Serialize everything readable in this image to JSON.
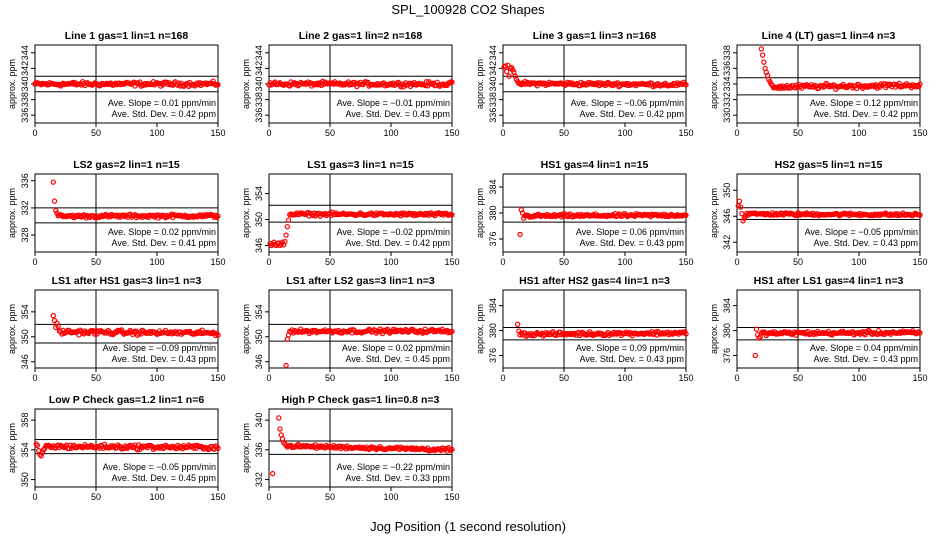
{
  "title": "SPL_100928  CO2 Shapes",
  "xlabel": "Jog Position (1 second resolution)",
  "chart_data": {
    "type": "scatter",
    "title": "SPL_100928  CO2 Shapes",
    "xlabel": "Jog Position (1 second resolution)",
    "marker_color": "#ff0000",
    "panels": [
      {
        "title": "Line 1 gas=1 lin=1 n=168",
        "ylabel": "approx. ppm",
        "xlim": [
          0,
          150
        ],
        "xticks": [
          0,
          50,
          100,
          150
        ],
        "ylim": [
          335,
          345
        ],
        "yticks": [
          336,
          338,
          340,
          342,
          344
        ],
        "hlines": [
          341,
          339
        ],
        "base": 340,
        "noise": 0.22,
        "slope": 0.01,
        "start": 0,
        "end": 150,
        "lead": [],
        "slope_text": "Ave. Slope =  0.01  ppm/min",
        "std_text": "Ave. Std. Dev. =  0.42  ppm"
      },
      {
        "title": "Line 2 gas=1 lin=2 n=168",
        "ylabel": "approx. ppm",
        "xlim": [
          0,
          150
        ],
        "xticks": [
          0,
          50,
          100,
          150
        ],
        "ylim": [
          335,
          345
        ],
        "yticks": [
          336,
          338,
          340,
          342,
          344
        ],
        "hlines": [
          341,
          339
        ],
        "base": 340,
        "noise": 0.22,
        "slope": -0.01,
        "start": 0,
        "end": 150,
        "lead": [],
        "slope_text": "Ave. Slope =  −0.01  ppm/min",
        "std_text": "Ave. Std. Dev. =  0.43  ppm"
      },
      {
        "title": "Line 3 gas=1 lin=3 n=168",
        "ylabel": "approx. ppm",
        "xlim": [
          0,
          150
        ],
        "xticks": [
          0,
          50,
          100,
          150
        ],
        "ylim": [
          335,
          345
        ],
        "yticks": [
          336,
          338,
          340,
          342,
          344
        ],
        "hlines": [
          341,
          339
        ],
        "base": 340,
        "noise": 0.2,
        "slope": -0.06,
        "start": 14,
        "end": 150,
        "lead": [
          [
            1,
            342.2
          ],
          [
            2,
            342.3
          ],
          [
            3,
            341.6
          ],
          [
            4,
            342.4
          ],
          [
            5,
            341.0
          ],
          [
            6,
            342.0
          ],
          [
            7,
            342.1
          ],
          [
            8,
            341.8
          ],
          [
            9,
            341.5
          ],
          [
            10,
            341.0
          ],
          [
            11,
            340.6
          ],
          [
            12,
            340.3
          ],
          [
            13,
            340.1
          ]
        ],
        "slope_text": "Ave. Slope =  −0.06  ppm/min",
        "std_text": "Ave. Std. Dev. =  0.42  ppm"
      },
      {
        "title": "Line 4 (LT) gas=1 lin=4 n=3",
        "ylabel": "approx. ppm",
        "xlim": [
          0,
          150
        ],
        "xticks": [
          0,
          50,
          100,
          150
        ],
        "ylim": [
          329,
          339
        ],
        "yticks": [
          330,
          332,
          334,
          336,
          338
        ],
        "hlines": [
          334.8,
          332.6
        ],
        "base": 333.7,
        "noise": 0.25,
        "slope": 0.12,
        "start": 30,
        "end": 150,
        "lead": [
          [
            20,
            338.5
          ],
          [
            21,
            337.7
          ],
          [
            22,
            336.8
          ],
          [
            23,
            336.0
          ],
          [
            24,
            335.5
          ],
          [
            25,
            335.1
          ],
          [
            26,
            334.6
          ],
          [
            27,
            334.3
          ],
          [
            28,
            334.0
          ],
          [
            29,
            333.8
          ]
        ],
        "slope_text": "Ave. Slope =  0.12  ppm/min",
        "std_text": "Ave. Std. Dev. =  0.42  ppm"
      },
      {
        "title": "LS2 gas=2 lin=1 n=15",
        "ylabel": "approx. ppm",
        "xlim": [
          0,
          150
        ],
        "xticks": [
          0,
          50,
          100,
          150
        ],
        "ylim": [
          325.5,
          337
        ],
        "yticks": [
          328,
          332,
          336
        ],
        "hlines": [
          332.0,
          329.8
        ],
        "base": 330.8,
        "noise": 0.2,
        "slope": 0.02,
        "start": 19,
        "end": 150,
        "lead": [
          [
            15,
            335.8
          ],
          [
            16,
            333.0
          ],
          [
            17,
            331.6
          ],
          [
            18,
            331.2
          ]
        ],
        "slope_text": "Ave. Slope =  0.02  ppm/min",
        "std_text": "Ave. Std. Dev. =  0.41  ppm"
      },
      {
        "title": "LS1 gas=3 lin=1 n=15",
        "ylabel": "approx. ppm",
        "xlim": [
          0,
          150
        ],
        "xticks": [
          0,
          50,
          100,
          150
        ],
        "ylim": [
          345,
          357
        ],
        "yticks": [
          346,
          350,
          354
        ],
        "hlines": [
          352.2,
          349.6
        ],
        "base": 350.8,
        "noise": 0.2,
        "slope": -0.02,
        "start": 17,
        "end": 150,
        "lead": [
          [
            1,
            346.3
          ],
          [
            2,
            346.0
          ],
          [
            3,
            346.2
          ],
          [
            4,
            346.5
          ],
          [
            5,
            346.1
          ],
          [
            6,
            346.0
          ],
          [
            7,
            346.3
          ],
          [
            8,
            346.4
          ],
          [
            9,
            346.0
          ],
          [
            10,
            346.2
          ],
          [
            11,
            346.5
          ],
          [
            12,
            346.1
          ],
          [
            13,
            346.6
          ],
          [
            14,
            347.6
          ],
          [
            15,
            348.9
          ],
          [
            16,
            349.9
          ]
        ],
        "slope_text": "Ave. Slope =  −0.02  ppm/min",
        "std_text": "Ave. Std. Dev. =  0.42  ppm"
      },
      {
        "title": "HS1 gas=4 lin=1 n=15",
        "ylabel": "approx. ppm",
        "xlim": [
          0,
          150
        ],
        "xticks": [
          0,
          50,
          100,
          150
        ],
        "ylim": [
          374,
          386
        ],
        "yticks": [
          376,
          380,
          384
        ],
        "hlines": [
          380.9,
          378.6
        ],
        "base": 379.6,
        "noise": 0.2,
        "slope": 0.06,
        "start": 18,
        "end": 150,
        "lead": [
          [
            14,
            376.7
          ],
          [
            15,
            380.5
          ],
          [
            16,
            380.0
          ],
          [
            17,
            379.2
          ]
        ],
        "slope_text": "Ave. Slope =  0.06  ppm/min",
        "std_text": "Ave. Std. Dev. =  0.43  ppm"
      },
      {
        "title": "HS2 gas=5 lin=1 n=15",
        "ylabel": "approx. ppm",
        "xlim": [
          0,
          150
        ],
        "xticks": [
          0,
          50,
          100,
          150
        ],
        "ylim": [
          340.5,
          352.5
        ],
        "yticks": [
          342,
          346,
          350
        ],
        "hlines": [
          347.3,
          345.5
        ],
        "base": 346.3,
        "noise": 0.18,
        "slope": -0.05,
        "start": 8,
        "end": 150,
        "lead": [
          [
            1,
            347.6
          ],
          [
            2,
            348.3
          ],
          [
            3,
            347.4
          ],
          [
            4,
            346.4
          ],
          [
            5,
            345.3
          ],
          [
            6,
            345.7
          ],
          [
            7,
            346.0
          ]
        ],
        "slope_text": "Ave. Slope =  −0.05  ppm/min",
        "std_text": "Ave. Std. Dev. =  0.43  ppm"
      },
      {
        "title": "LS1 after HS1 gas=3 lin=1 n=3",
        "ylabel": "approx. ppm",
        "xlim": [
          0,
          150
        ],
        "xticks": [
          0,
          50,
          100,
          150
        ],
        "ylim": [
          345,
          357.5
        ],
        "yticks": [
          346,
          350,
          354
        ],
        "hlines": [
          352.0,
          349.0
        ],
        "base": 350.7,
        "noise": 0.3,
        "slope": -0.09,
        "start": 20,
        "end": 150,
        "lead": [
          [
            15,
            353.4
          ],
          [
            16,
            352.6
          ],
          [
            17,
            351.5
          ],
          [
            18,
            352.2
          ],
          [
            19,
            351.7
          ]
        ],
        "slope_text": "Ave. Slope =  −0.09  ppm/min",
        "std_text": "Ave. Std. Dev. =  0.43  ppm"
      },
      {
        "title": "LS1 after LS2 gas=3 lin=1 n=3",
        "ylabel": "approx. ppm",
        "xlim": [
          0,
          150
        ],
        "xticks": [
          0,
          50,
          100,
          150
        ],
        "ylim": [
          345,
          357.5
        ],
        "yticks": [
          346,
          350,
          354
        ],
        "hlines": [
          352.0,
          349.3
        ],
        "base": 350.9,
        "noise": 0.25,
        "slope": 0.02,
        "start": 17,
        "end": 150,
        "lead": [
          [
            14,
            345.4
          ],
          [
            15,
            349.6
          ],
          [
            16,
            350.3
          ]
        ],
        "slope_text": "Ave. Slope =  0.02  ppm/min",
        "std_text": "Ave. Std. Dev. =  0.45  ppm"
      },
      {
        "title": "HS1 after HS2 gas=4 lin=1 n=3",
        "ylabel": "approx. ppm",
        "xlim": [
          0,
          150
        ],
        "xticks": [
          0,
          50,
          100,
          150
        ],
        "ylim": [
          374,
          386.5
        ],
        "yticks": [
          376,
          380,
          384
        ],
        "hlines": [
          380.5,
          378.5
        ],
        "base": 379.5,
        "noise": 0.25,
        "slope": 0.09,
        "start": 16,
        "end": 150,
        "lead": [
          [
            12,
            381.0
          ],
          [
            13,
            379.9
          ],
          [
            14,
            379.3
          ],
          [
            15,
            379.6
          ]
        ],
        "slope_text": "Ave. Slope =  0.09  ppm/min",
        "std_text": "Ave. Std. Dev. =  0.43  ppm"
      },
      {
        "title": "HS1 after LS1 gas=4 lin=1 n=3",
        "ylabel": "approx. ppm",
        "xlim": [
          0,
          150
        ],
        "xticks": [
          0,
          50,
          100,
          150
        ],
        "ylim": [
          374,
          386.5
        ],
        "yticks": [
          376,
          380,
          384
        ],
        "hlines": [
          380.5,
          378.5
        ],
        "base": 379.6,
        "noise": 0.25,
        "slope": 0.04,
        "start": 20,
        "end": 150,
        "lead": [
          [
            15,
            376.0
          ],
          [
            16,
            380.2
          ],
          [
            17,
            379.3
          ],
          [
            18,
            378.8
          ],
          [
            19,
            379.0
          ]
        ],
        "slope_text": "Ave. Slope =  0.04  ppm/min",
        "std_text": "Ave. Std. Dev. =  0.43  ppm"
      },
      {
        "title": "Low P Check gas=1.2 lin=1 n=6",
        "ylabel": "approx. ppm",
        "xlim": [
          0,
          150
        ],
        "xticks": [
          0,
          50,
          100,
          150
        ],
        "ylim": [
          349,
          359.5
        ],
        "yticks": [
          350,
          354,
          358
        ],
        "hlines": [
          355.4,
          353.5
        ],
        "base": 354.4,
        "noise": 0.25,
        "slope": -0.05,
        "start": 9,
        "end": 150,
        "lead": [
          [
            1,
            354.8
          ],
          [
            2,
            354.6
          ],
          [
            3,
            353.9
          ],
          [
            4,
            353.4
          ],
          [
            5,
            353.2
          ],
          [
            6,
            353.6
          ],
          [
            7,
            354.0
          ],
          [
            8,
            354.2
          ]
        ],
        "slope_text": "Ave. Slope =  −0.05  ppm/min",
        "std_text": "Ave. Std. Dev. =  0.45  ppm"
      },
      {
        "title": "High P Check gas=1 lin=0.8 n=3",
        "ylabel": "approx. ppm",
        "xlim": [
          0,
          150
        ],
        "xticks": [
          0,
          50,
          100,
          150
        ],
        "ylim": [
          331,
          341.5
        ],
        "yticks": [
          332,
          336,
          340
        ],
        "hlines": [
          337.2,
          335.4
        ],
        "base": 336.3,
        "noise": 0.18,
        "slope": -0.22,
        "start": 16,
        "end": 150,
        "lead": [
          [
            3,
            332.8
          ],
          [
            8,
            340.3
          ],
          [
            9,
            338.8
          ],
          [
            10,
            338.0
          ],
          [
            11,
            337.5
          ],
          [
            12,
            337.0
          ],
          [
            13,
            336.8
          ],
          [
            14,
            336.6
          ],
          [
            15,
            336.4
          ]
        ],
        "slope_text": "Ave. Slope =  −0.22  ppm/min",
        "std_text": "Ave. Std. Dev. =  0.33  ppm"
      }
    ]
  }
}
